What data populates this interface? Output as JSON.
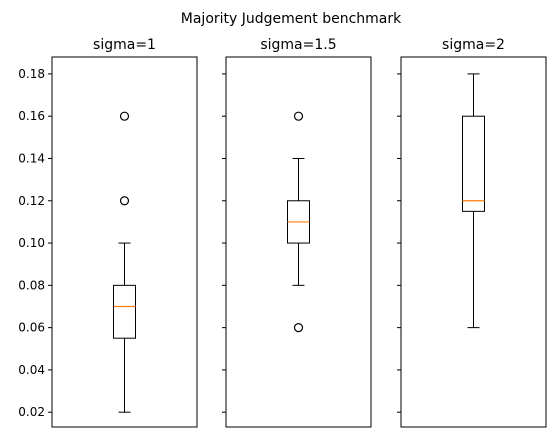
{
  "chart_data": {
    "type": "boxplot",
    "title": "Majority Judgement benchmark",
    "ylim": [
      0.013,
      0.188
    ],
    "yticks": [
      "0.02",
      "0.04",
      "0.06",
      "0.08",
      "0.10",
      "0.12",
      "0.14",
      "0.16",
      "0.18"
    ],
    "shared_y": true,
    "colors": {
      "box": "#000000",
      "median": "#ff7f0e"
    },
    "panels": [
      {
        "title": "sigma=1",
        "whisker_low": 0.02,
        "q1": 0.055,
        "median": 0.07,
        "q3": 0.08,
        "whisker_high": 0.1,
        "outliers": [
          0.12,
          0.16
        ]
      },
      {
        "title": "sigma=1.5",
        "whisker_low": 0.08,
        "q1": 0.1,
        "median": 0.11,
        "q3": 0.12,
        "whisker_high": 0.14,
        "outliers": [
          0.06,
          0.16
        ]
      },
      {
        "title": "sigma=2",
        "whisker_low": 0.06,
        "q1": 0.115,
        "median": 0.12,
        "q3": 0.16,
        "whisker_high": 0.18,
        "outliers": []
      }
    ]
  }
}
